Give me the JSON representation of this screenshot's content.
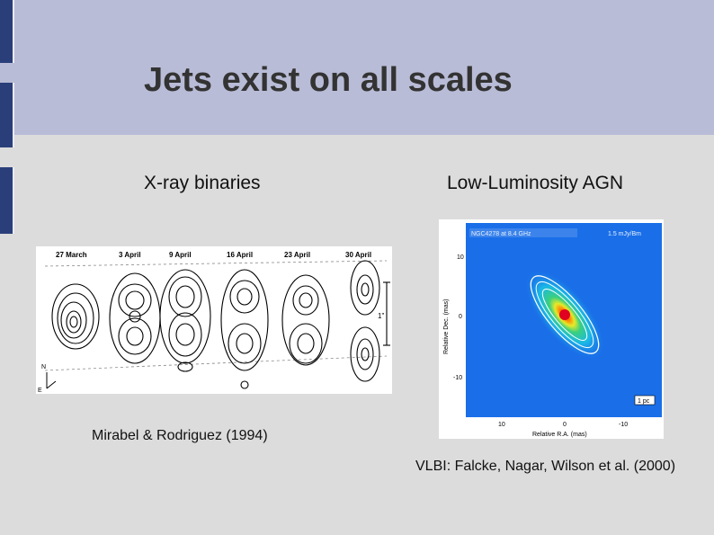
{
  "slide": {
    "title": "Jets exist on all scales",
    "left_heading": "X-ray binaries",
    "right_heading": "Low-Luminosity AGN",
    "left_caption": "Mirabel & Rodriguez (1994)",
    "right_caption": "VLBI: Falcke, Nagar, Wilson et al. (2000)"
  },
  "xray_figure": {
    "dates": [
      "27 March",
      "3 April",
      "9 April",
      "16 April",
      "23 April",
      "30 April"
    ],
    "scale_label": "1\"",
    "compass": [
      "N",
      "E"
    ]
  },
  "agn_figure": {
    "header_left": "NGC4278 at 8.4 GHz",
    "header_right": "1.5 mJy/Bm",
    "y_label": "Relative Dec. (mas)",
    "x_label": "Relative R.A. (mas)",
    "y_ticks": [
      "10",
      "0",
      "-10"
    ],
    "x_ticks": [
      "10",
      "0",
      "-10"
    ],
    "scale_box": "1 pc"
  },
  "colors": {
    "header_bg": "#b8bcd6",
    "content_bg": "#dcdcdc",
    "side_bar": "#2a3f7a"
  }
}
